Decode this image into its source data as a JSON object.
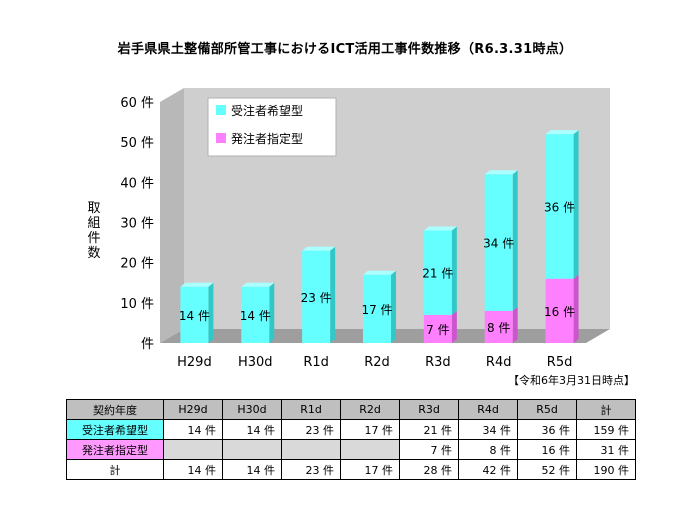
{
  "title": "岩手県県土整備部所管工事におけるICT活用工事件数推移（R6.3.31時点）",
  "as_of_note": "【令和6年3月31日時点】",
  "colors": {
    "hope": "#66ffff",
    "spec": "#ff80ff",
    "back_wall": "#cccccc",
    "floor": "#9e9e9e"
  },
  "chart_data": {
    "type": "bar",
    "stacked": true,
    "title": "岩手県県土整備部所管工事におけるICT活用工事件数推移（R6.3.31時点）",
    "ylabel": "取組件数",
    "ylim": [
      0,
      60
    ],
    "yticks": [
      "60 件",
      "50 件",
      "40 件",
      "30 件",
      "20 件",
      "10 件",
      "件"
    ],
    "categories": [
      "H29d",
      "H30d",
      "R1d",
      "R2d",
      "R3d",
      "R4d",
      "R5d"
    ],
    "series": [
      {
        "name": "受注者希望型",
        "values": [
          14,
          14,
          23,
          17,
          21,
          34,
          36
        ],
        "labels": [
          "14 件",
          "14 件",
          "23 件",
          "17 件",
          "21 件",
          "34 件",
          "36 件"
        ]
      },
      {
        "name": "発注者指定型",
        "values": [
          0,
          0,
          0,
          0,
          7,
          8,
          16
        ],
        "labels": [
          "",
          "",
          "",
          "",
          "7 件",
          "8 件",
          "16 件"
        ]
      }
    ],
    "legend": "top-left"
  },
  "table": {
    "header": [
      "契約年度",
      "H29d",
      "H30d",
      "R1d",
      "R2d",
      "R3d",
      "R4d",
      "R5d",
      "計"
    ],
    "rows": [
      {
        "label": "受注者希望型",
        "cells": [
          "14 件",
          "14 件",
          "23 件",
          "17 件",
          "21 件",
          "34 件",
          "36 件",
          "159 件"
        ]
      },
      {
        "label": "発注者指定型",
        "cells": [
          "",
          "",
          "",
          "",
          "7 件",
          "8 件",
          "16 件",
          "31 件"
        ]
      },
      {
        "label": "計",
        "cells": [
          "14 件",
          "14 件",
          "23 件",
          "17 件",
          "28 件",
          "42 件",
          "52 件",
          "190 件"
        ]
      }
    ]
  }
}
